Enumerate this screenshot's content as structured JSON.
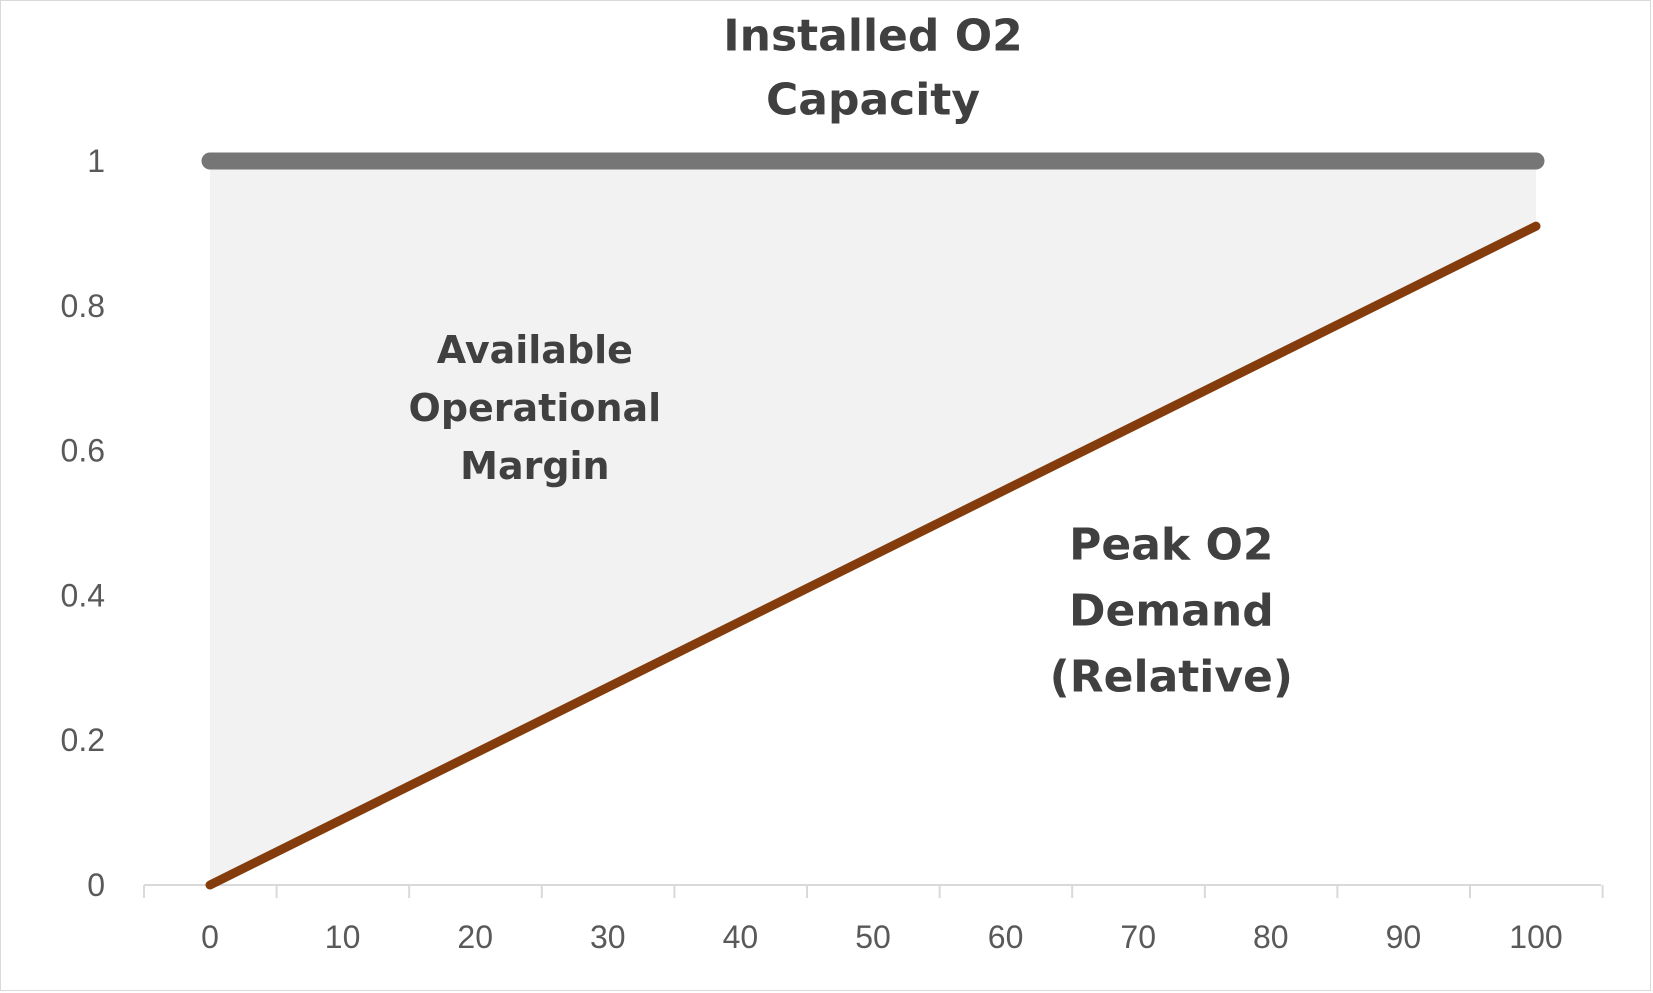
{
  "chart_data": {
    "type": "area",
    "x": [
      0,
      100
    ],
    "series": [
      {
        "values": [
          1,
          1
        ],
        "color": "#767676"
      },
      {
        "values": [
          0,
          0.91
        ],
        "color": "#843C0C"
      }
    ],
    "fill_between": {
      "color": "#F2F2F2"
    },
    "xlim": [
      0,
      100
    ],
    "ylim": [
      0,
      1
    ],
    "x_ticks": [
      0,
      10,
      20,
      30,
      40,
      50,
      60,
      70,
      80,
      90,
      100
    ],
    "y_ticks": [
      0,
      0.2,
      0.4,
      0.6,
      0.8,
      1
    ],
    "x_tick_labels": [
      "0",
      "10",
      "20",
      "30",
      "40",
      "50",
      "60",
      "70",
      "80",
      "90",
      "100"
    ],
    "y_tick_labels": [
      "0",
      "0.2",
      "0.4",
      "0.6",
      "0.8",
      "1"
    ],
    "grid": false,
    "title": "",
    "xlabel": "",
    "ylabel": "",
    "annotations": [
      {
        "lines": [
          "Installed O2",
          "Capacity"
        ],
        "x": 50,
        "y": 1.13
      },
      {
        "lines": [
          "Available",
          "Operational",
          "Margin"
        ],
        "x": 24.5,
        "y": 0.66
      },
      {
        "lines": [
          "Peak O2",
          "Demand",
          "(Relative)"
        ],
        "x": 72.5,
        "y": 0.38
      }
    ],
    "axis_color": "#D9D9D9",
    "text_color": "#404040",
    "tick_color": "#595959"
  }
}
